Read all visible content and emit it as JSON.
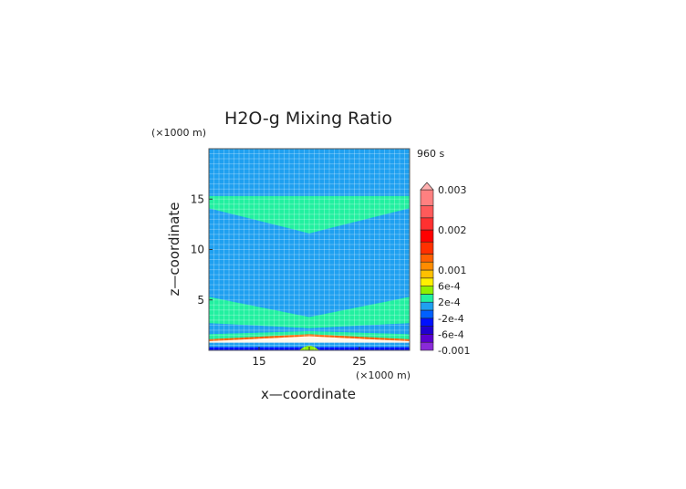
{
  "chart_data": {
    "type": "heatmap",
    "title": "H2O-g Mixing Ratio",
    "time_label": "960 s",
    "xlabel": "x—coordinate",
    "ylabel": "z—coordinate",
    "x_unit": "(×1000 m)",
    "z_unit": "(×1000 m)",
    "xlim": [
      10,
      30
    ],
    "ylim": [
      0,
      20
    ],
    "x_ticks": [
      15,
      20,
      25
    ],
    "y_ticks": [
      5,
      10,
      15
    ],
    "grid": true,
    "colorbar": {
      "labels": [
        "0.003",
        "0.002",
        "0.001",
        "6e-4",
        "2e-4",
        "-2e-4",
        "-6e-4",
        "-0.001"
      ],
      "label_values": [
        0.003,
        0.002,
        0.001,
        0.0006,
        0.0002,
        -0.0002,
        -0.0006,
        -0.001
      ],
      "extend": "max",
      "levels": [
        {
          "value": -0.001,
          "color": "#8a2ad8"
        },
        {
          "value": -0.0008,
          "color": "#5a00d0"
        },
        {
          "value": -0.0006,
          "color": "#2000d0"
        },
        {
          "value": -0.0004,
          "color": "#0010ff"
        },
        {
          "value": -0.0002,
          "color": "#0060ff"
        },
        {
          "value": 0.0,
          "color": "#1fa0f0"
        },
        {
          "value": 0.0002,
          "color": "#22f0a0"
        },
        {
          "value": 0.0004,
          "color": "#8ff000"
        },
        {
          "value": 0.0006,
          "color": "#fff000"
        },
        {
          "value": 0.0008,
          "color": "#ffc000"
        },
        {
          "value": 0.001,
          "color": "#ff8c00"
        },
        {
          "value": 0.0012,
          "color": "#ff6000"
        },
        {
          "value": 0.0014,
          "color": "#ff3000"
        },
        {
          "value": 0.0017,
          "color": "#ff0000"
        },
        {
          "value": 0.002,
          "color": "#ff3030"
        },
        {
          "value": 0.0023,
          "color": "#ff5a5a"
        },
        {
          "value": 0.0026,
          "color": "#ff8080"
        },
        {
          "value": 0.003,
          "color": "#ffb0b0"
        }
      ]
    },
    "regions": [
      {
        "z_bottom": 0.0,
        "z_top": 20.0,
        "value": 0.0,
        "color": "#1fa0f0"
      },
      {
        "z_bottom_edge": 14.1,
        "z_bottom_center": 11.6,
        "z_top": 15.3,
        "value": 0.0003,
        "color": "#22f0a0"
      },
      {
        "z_bottom_edge": 2.7,
        "z_bottom_center": 2.2,
        "z_top_edge": 5.3,
        "z_top_center": 3.3,
        "value": 0.0003,
        "color": "#22f0a0"
      },
      {
        "z_bottom_edge": 1.1,
        "z_top_edge": 1.6,
        "z_top_center": 1.9,
        "value": 0.0003,
        "color": "#22f0a0"
      },
      {
        "z_bottom": 0.8,
        "z_top_edge": 1.1,
        "z_top_center": 1.6,
        "value": 0.0012,
        "color": "#ff6000"
      },
      {
        "z_bottom_edge": 0.75,
        "z_top_edge": 0.9,
        "z_top_center": 1.4,
        "value": 0.0003,
        "color": "#fff6e8"
      },
      {
        "z_bottom": 0.3,
        "z_top": 0.75,
        "value": 0.0,
        "color": "#1fa0f0"
      },
      {
        "z_bottom": 0.0,
        "z_top": 0.3,
        "value": -0.0004,
        "color": "#0010ff"
      },
      {
        "x_center": 20.0,
        "x_halfwidth": 1.0,
        "z_top": 0.6,
        "value": 0.0004,
        "color": "#8ff000"
      }
    ]
  }
}
